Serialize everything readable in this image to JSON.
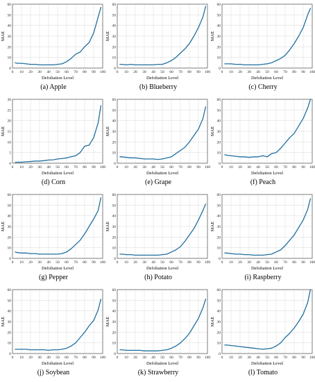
{
  "colors": {
    "line": "#1f6f9f",
    "grid": "#d9d9d9",
    "axis": "#333333"
  },
  "chart_data": [
    {
      "type": "line",
      "caption": "(a) Apple",
      "xlabel": "Defoliation Level",
      "ylabel": "MAE",
      "xlim": [
        0,
        100
      ],
      "ylim": [
        0,
        60
      ],
      "grid": true,
      "xticks": [
        0,
        10,
        20,
        30,
        40,
        50,
        60,
        70,
        80,
        90,
        100
      ],
      "yticks": [
        0,
        10,
        20,
        30,
        40,
        50,
        60
      ],
      "series": [
        {
          "x": [
            3,
            5,
            10,
            15,
            20,
            25,
            30,
            35,
            40,
            45,
            50,
            55,
            60,
            65,
            70,
            75,
            80,
            85,
            90,
            95,
            98
          ],
          "y": [
            5,
            4.5,
            4.5,
            4,
            3.5,
            3.5,
            3,
            3,
            3,
            3,
            3.5,
            4,
            6,
            9,
            13,
            15,
            20,
            24,
            33,
            48,
            57
          ]
        }
      ]
    },
    {
      "type": "line",
      "caption": "(b) Blueberry",
      "xlabel": "Defoliation Level",
      "ylabel": "MAE",
      "xlim": [
        0,
        100
      ],
      "ylim": [
        0,
        60
      ],
      "grid": true,
      "xticks": [
        0,
        10,
        20,
        30,
        40,
        50,
        60,
        70,
        80,
        90,
        100
      ],
      "yticks": [
        0,
        10,
        20,
        30,
        40,
        50,
        60
      ],
      "series": [
        {
          "x": [
            3,
            5,
            10,
            15,
            20,
            25,
            30,
            35,
            40,
            45,
            50,
            55,
            60,
            65,
            70,
            75,
            80,
            85,
            90,
            95,
            98
          ],
          "y": [
            3.5,
            3.5,
            3,
            3.5,
            3,
            3,
            3,
            3,
            3,
            3.5,
            3.5,
            5,
            7,
            10,
            14,
            18,
            23,
            30,
            38,
            48,
            58
          ]
        }
      ]
    },
    {
      "type": "line",
      "caption": "(c) Cherry",
      "xlabel": "Defoliation Level",
      "ylabel": "MAE",
      "xlim": [
        0,
        100
      ],
      "ylim": [
        0,
        60
      ],
      "grid": true,
      "xticks": [
        0,
        10,
        20,
        30,
        40,
        50,
        60,
        70,
        80,
        90,
        100
      ],
      "yticks": [
        0,
        10,
        20,
        30,
        40,
        50,
        60
      ],
      "series": [
        {
          "x": [
            3,
            5,
            10,
            15,
            20,
            25,
            30,
            35,
            40,
            45,
            50,
            55,
            60,
            65,
            70,
            75,
            80,
            85,
            90,
            95,
            98
          ],
          "y": [
            4,
            4,
            4,
            3.5,
            3.5,
            3,
            3,
            3,
            3,
            3.5,
            4,
            5,
            7,
            9,
            12,
            17,
            23,
            30,
            38,
            50,
            56
          ]
        }
      ]
    },
    {
      "type": "line",
      "caption": "(d) Corn",
      "xlabel": "Defoliation Level",
      "ylabel": "MAE",
      "xlim": [
        0,
        100
      ],
      "ylim": [
        0,
        30
      ],
      "grid": true,
      "xticks": [
        0,
        10,
        20,
        30,
        40,
        50,
        60,
        70,
        80,
        90,
        100
      ],
      "yticks": [
        0,
        5,
        10,
        15,
        20,
        25,
        30
      ],
      "series": [
        {
          "x": [
            3,
            5,
            10,
            15,
            20,
            25,
            30,
            35,
            40,
            45,
            50,
            55,
            60,
            65,
            70,
            75,
            80,
            85,
            90,
            95,
            98
          ],
          "y": [
            0.5,
            0.5,
            0.5,
            0.7,
            0.8,
            1,
            1,
            1.2,
            1.5,
            1.6,
            2,
            2.2,
            2.5,
            3,
            3.5,
            5,
            8,
            8.5,
            12,
            19,
            27
          ]
        }
      ]
    },
    {
      "type": "line",
      "caption": "(e) Grape",
      "xlabel": "Defoliation Level",
      "ylabel": "MAE",
      "xlim": [
        0,
        100
      ],
      "ylim": [
        0,
        60
      ],
      "grid": true,
      "xticks": [
        0,
        10,
        20,
        30,
        40,
        50,
        60,
        70,
        80,
        90,
        100
      ],
      "yticks": [
        0,
        10,
        20,
        30,
        40,
        50,
        60
      ],
      "series": [
        {
          "x": [
            3,
            5,
            10,
            15,
            20,
            25,
            30,
            35,
            40,
            45,
            50,
            55,
            60,
            65,
            70,
            75,
            80,
            85,
            90,
            95,
            98
          ],
          "y": [
            6,
            6,
            5.5,
            5,
            5,
            4.5,
            4,
            4,
            4,
            3.5,
            4,
            5,
            6,
            9,
            12,
            15,
            20,
            26,
            32,
            42,
            53
          ]
        }
      ]
    },
    {
      "type": "line",
      "caption": "(f) Peach",
      "xlabel": "Defoliation Level",
      "ylabel": "MAE",
      "xlim": [
        0,
        100
      ],
      "ylim": [
        0,
        60
      ],
      "grid": true,
      "xticks": [
        0,
        10,
        20,
        30,
        40,
        50,
        60,
        70,
        80,
        90,
        100
      ],
      "yticks": [
        0,
        10,
        20,
        30,
        40,
        50,
        60
      ],
      "series": [
        {
          "x": [
            3,
            5,
            10,
            15,
            20,
            25,
            30,
            35,
            40,
            45,
            50,
            55,
            60,
            65,
            70,
            75,
            80,
            85,
            90,
            95,
            98
          ],
          "y": [
            8,
            7.5,
            7,
            6.5,
            6,
            6,
            5.5,
            6,
            6,
            7,
            6,
            9,
            10,
            14,
            19,
            24,
            28,
            35,
            42,
            52,
            60
          ]
        }
      ]
    },
    {
      "type": "line",
      "caption": "(g) Pepper",
      "xlabel": "Defoliation Level",
      "ylabel": "MAE",
      "xlim": [
        0,
        100
      ],
      "ylim": [
        0,
        60
      ],
      "grid": true,
      "xticks": [
        0,
        10,
        20,
        30,
        40,
        50,
        60,
        70,
        80,
        90,
        100
      ],
      "yticks": [
        0,
        10,
        20,
        30,
        40,
        50,
        60
      ],
      "series": [
        {
          "x": [
            3,
            5,
            10,
            15,
            20,
            25,
            30,
            35,
            40,
            45,
            50,
            55,
            60,
            65,
            70,
            75,
            80,
            85,
            90,
            95,
            98
          ],
          "y": [
            6,
            5.5,
            5,
            5,
            4.5,
            4.5,
            4,
            4,
            4,
            4,
            4,
            4.5,
            6,
            9,
            13,
            17,
            23,
            30,
            37,
            45,
            57
          ]
        }
      ]
    },
    {
      "type": "line",
      "caption": "(h) Potato",
      "xlabel": "Defoliation Level",
      "ylabel": "MAE",
      "xlim": [
        0,
        100
      ],
      "ylim": [
        0,
        60
      ],
      "grid": true,
      "xticks": [
        0,
        10,
        20,
        30,
        40,
        50,
        60,
        70,
        80,
        90,
        100
      ],
      "yticks": [
        0,
        10,
        20,
        30,
        40,
        50,
        60
      ],
      "series": [
        {
          "x": [
            3,
            5,
            10,
            15,
            20,
            25,
            30,
            35,
            40,
            45,
            50,
            55,
            60,
            65,
            70,
            75,
            80,
            85,
            90,
            95,
            98
          ],
          "y": [
            4,
            4,
            3.5,
            3.5,
            3,
            3,
            3,
            3,
            3,
            3,
            3.5,
            4,
            6,
            8,
            11,
            16,
            22,
            28,
            36,
            45,
            51
          ]
        }
      ]
    },
    {
      "type": "line",
      "caption": "(i) Raspberry",
      "xlabel": "Defoliation Level",
      "ylabel": "MAE",
      "xlim": [
        0,
        100
      ],
      "ylim": [
        0,
        60
      ],
      "grid": true,
      "xticks": [
        0,
        10,
        20,
        30,
        40,
        50,
        60,
        70,
        80,
        90,
        100
      ],
      "yticks": [
        0,
        10,
        20,
        30,
        40,
        50,
        60
      ],
      "series": [
        {
          "x": [
            3,
            5,
            10,
            15,
            20,
            25,
            30,
            35,
            40,
            45,
            50,
            55,
            60,
            65,
            70,
            75,
            80,
            85,
            90,
            95,
            98
          ],
          "y": [
            5,
            5,
            4.5,
            4,
            4,
            3.5,
            3.5,
            3,
            3,
            3,
            3.5,
            4,
            6,
            8,
            12,
            17,
            22,
            29,
            36,
            46,
            56
          ]
        }
      ]
    },
    {
      "type": "line",
      "caption": "(j) Soybean",
      "xlabel": "Defoliation Level",
      "ylabel": "MAE",
      "xlim": [
        0,
        100
      ],
      "ylim": [
        0,
        60
      ],
      "grid": true,
      "xticks": [
        0,
        10,
        20,
        30,
        40,
        50,
        60,
        70,
        80,
        90,
        100
      ],
      "yticks": [
        0,
        10,
        20,
        30,
        40,
        50,
        60
      ],
      "series": [
        {
          "x": [
            3,
            5,
            10,
            15,
            20,
            25,
            30,
            35,
            40,
            45,
            50,
            55,
            60,
            65,
            70,
            75,
            80,
            85,
            90,
            95,
            98
          ],
          "y": [
            4,
            4,
            4,
            4,
            3.5,
            3.5,
            3.5,
            3.5,
            3,
            3.5,
            3.5,
            4,
            5,
            7,
            10,
            15,
            20,
            26,
            31,
            41,
            51
          ]
        }
      ]
    },
    {
      "type": "line",
      "caption": "(k) Strawberry",
      "xlabel": "Defoliation Level",
      "ylabel": "MAE",
      "xlim": [
        0,
        100
      ],
      "ylim": [
        0,
        60
      ],
      "grid": true,
      "xticks": [
        0,
        10,
        20,
        30,
        40,
        50,
        60,
        70,
        80,
        90,
        100
      ],
      "yticks": [
        0,
        10,
        20,
        30,
        40,
        50,
        60
      ],
      "series": [
        {
          "x": [
            3,
            5,
            10,
            15,
            20,
            25,
            30,
            35,
            40,
            45,
            50,
            55,
            60,
            65,
            70,
            75,
            80,
            85,
            90,
            95,
            98
          ],
          "y": [
            3.5,
            3.5,
            3,
            3,
            3,
            3,
            2.5,
            2.5,
            2.5,
            2.5,
            3,
            3.5,
            5,
            7,
            10,
            14,
            19,
            26,
            33,
            43,
            51
          ]
        }
      ]
    },
    {
      "type": "line",
      "caption": "(l) Tomato",
      "xlabel": "Defoliation Level",
      "ylabel": "MAE",
      "xlim": [
        0,
        100
      ],
      "ylim": [
        0,
        60
      ],
      "grid": true,
      "xticks": [
        0,
        10,
        20,
        30,
        40,
        50,
        60,
        70,
        80,
        90,
        100
      ],
      "yticks": [
        0,
        10,
        20,
        30,
        40,
        50,
        60
      ],
      "series": [
        {
          "x": [
            3,
            5,
            10,
            15,
            20,
            25,
            30,
            35,
            40,
            45,
            50,
            55,
            60,
            65,
            70,
            75,
            80,
            85,
            90,
            95,
            98
          ],
          "y": [
            8,
            8,
            7.5,
            7,
            6.5,
            6,
            5.5,
            5,
            4.5,
            4,
            4.5,
            5,
            7,
            10,
            15,
            19,
            24,
            30,
            37,
            48,
            60
          ]
        }
      ]
    }
  ]
}
